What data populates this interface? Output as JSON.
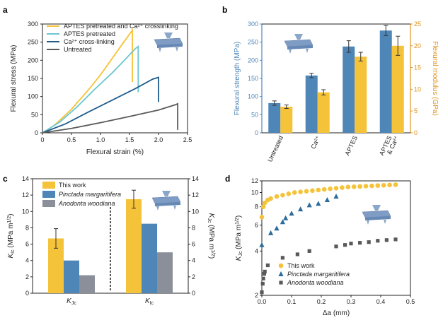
{
  "colors": {
    "yellow": "#f5c33a",
    "cyan": "#6cc6cf",
    "darkblue": "#1f5c8c",
    "gray": "#5a5a5a",
    "blue_bar": "#4f86b8",
    "orange_axis": "#e0921c",
    "gray_bar": "#8a8f9a",
    "blue_marker": "#2b6c9c",
    "gray_marker": "#595959"
  },
  "panels": {
    "a": {
      "letter": "a"
    },
    "b": {
      "letter": "b"
    },
    "c": {
      "letter": "c"
    },
    "d": {
      "letter": "d"
    }
  },
  "chart_data": [
    {
      "panel": "a",
      "type": "line",
      "xlabel": "Flexural strain (%)",
      "ylabel": "Flexural stress (MPa)",
      "xlim": [
        0,
        2.5
      ],
      "ylim": [
        0,
        300
      ],
      "xticks": [
        "0",
        "0.5",
        "1.0",
        "1.5",
        "2.0",
        "2.5"
      ],
      "yticks": [
        "0",
        "50",
        "100",
        "150",
        "200",
        "250",
        "300"
      ],
      "legend_position": "top-left",
      "series": [
        {
          "name": "APTES pretreated and Ca²⁺ crosslinking",
          "color_key": "yellow",
          "x": [
            0,
            0.2,
            0.5,
            0.8,
            1.0,
            1.2,
            1.4,
            1.55,
            1.55
          ],
          "y": [
            0,
            20,
            65,
            120,
            160,
            205,
            250,
            283,
            140
          ]
        },
        {
          "name": "APTES pretreated",
          "color_key": "cyan",
          "x": [
            0,
            0.3,
            0.6,
            0.9,
            1.2,
            1.4,
            1.6,
            1.65,
            1.65
          ],
          "y": [
            0,
            30,
            72,
            120,
            165,
            198,
            232,
            238,
            112
          ]
        },
        {
          "name": "Ca²⁺ cross-linking",
          "color_key": "darkblue",
          "x": [
            0,
            0.4,
            0.8,
            1.2,
            1.6,
            1.9,
            2.0,
            2.0
          ],
          "y": [
            0,
            25,
            58,
            90,
            122,
            148,
            153,
            85
          ]
        },
        {
          "name": "Untreated",
          "color_key": "gray",
          "x": [
            0,
            0.5,
            1.0,
            1.5,
            2.0,
            2.3,
            2.33,
            2.33
          ],
          "y": [
            0,
            12,
            28,
            45,
            63,
            78,
            80,
            8
          ]
        }
      ]
    },
    {
      "panel": "b",
      "type": "bar",
      "categories": [
        "Untreated",
        "Ca²⁺",
        "APTES",
        "APTES & Ca²⁺"
      ],
      "ylabel_left": "Flexural strength (MPa)",
      "ylabel_right": "Flexural modulus (GPa)",
      "ylim_left": [
        0,
        300
      ],
      "ylim_right": [
        0,
        25
      ],
      "yticks_left": [
        "0",
        "50",
        "100",
        "150",
        "200",
        "250",
        "300"
      ],
      "yticks_right": [
        "0",
        "5",
        "10",
        "15",
        "20",
        "25"
      ],
      "series": [
        {
          "axis": "left",
          "color_key": "blue_bar",
          "values": [
            82,
            158,
            238,
            282
          ],
          "errors": [
            6,
            6,
            16,
            14
          ]
        },
        {
          "axis": "right",
          "color_key": "yellow",
          "values": [
            6.0,
            9.3,
            17.5,
            20.0
          ],
          "errors": [
            0.4,
            0.6,
            1.0,
            2.2
          ]
        }
      ]
    },
    {
      "panel": "c",
      "type": "bar",
      "groups": [
        {
          "label_main": "K",
          "label_sub": "Jc"
        },
        {
          "label_main": "K",
          "label_sub": "Ic"
        }
      ],
      "ylabel_left": "K",
      "ylabel_left_sub": "Ic",
      "ylabel_left_unit": " (MPa m",
      "ylabel_left_exp": "1/2",
      "ylabel_right": "K",
      "ylabel_right_sub": "Jc",
      "ylabel_right_unit": " (MPa m",
      "ylabel_right_exp": "1/2",
      "ylim": [
        0,
        14
      ],
      "yticks": [
        "0",
        "2",
        "4",
        "6",
        "8",
        "10",
        "12",
        "14"
      ],
      "legend_position": "top-left",
      "series": [
        {
          "name": "This work",
          "italic": false,
          "color_key": "yellow",
          "values": [
            6.7,
            11.5
          ],
          "errors": [
            1.2,
            1.1
          ]
        },
        {
          "name": "Pinctada margaritifera",
          "italic": true,
          "color_key": "blue_bar",
          "values": [
            4.0,
            8.5
          ],
          "errors": [
            0,
            0
          ]
        },
        {
          "name": "Anodonta woodiana",
          "italic": true,
          "color_key": "gray_bar",
          "values": [
            2.2,
            5.0
          ],
          "errors": [
            0,
            0
          ]
        }
      ]
    },
    {
      "panel": "d",
      "type": "scatter",
      "xlabel": "Δa (mm)",
      "ylabel": "K",
      "ylabel_sub": "Jc",
      "ylabel_unit": " (MPa m",
      "ylabel_exp": "1/2",
      "y_scale": "log",
      "xlim": [
        0,
        0.5
      ],
      "ylim": [
        2,
        12
      ],
      "xticks": [
        "0.0",
        "0.1",
        "0.2",
        "0.3",
        "0.4",
        "0.5"
      ],
      "yticks": [
        "2",
        "4",
        "6",
        "8",
        "10",
        "12"
      ],
      "legend_position": "bottom-left",
      "series": [
        {
          "name": "This work",
          "italic": false,
          "color_key": "yellow",
          "marker": "circle",
          "x": [
            0.0,
            0.005,
            0.01,
            0.02,
            0.03,
            0.05,
            0.07,
            0.09,
            0.11,
            0.13,
            0.15,
            0.17,
            0.19,
            0.21,
            0.23,
            0.25,
            0.27,
            0.29,
            0.31,
            0.33,
            0.35,
            0.37,
            0.39,
            0.41,
            0.43,
            0.45
          ],
          "y": [
            6.8,
            8.0,
            8.5,
            8.9,
            9.1,
            9.4,
            9.6,
            9.8,
            10.0,
            10.1,
            10.2,
            10.3,
            10.4,
            10.5,
            10.6,
            10.7,
            10.8,
            10.9,
            10.95,
            11.0,
            11.05,
            11.1,
            11.15,
            11.2,
            11.25,
            11.3
          ]
        },
        {
          "name": "Pinctada margaritifera",
          "italic": true,
          "color_key": "blue_marker",
          "marker": "triangle",
          "x": [
            0.0,
            0.03,
            0.05,
            0.07,
            0.08,
            0.1,
            0.13,
            0.16,
            0.19,
            0.22,
            0.25
          ],
          "y": [
            4.4,
            5.3,
            5.7,
            6.3,
            6.7,
            7.2,
            7.7,
            8.2,
            8.4,
            8.9,
            9.4
          ]
        },
        {
          "name": "Anodonta woodiana",
          "italic": true,
          "color_key": "gray_marker",
          "marker": "square",
          "x": [
            0.0,
            0.003,
            0.005,
            0.008,
            0.01,
            0.02,
            0.07,
            0.12,
            0.16,
            0.25,
            0.28,
            0.3,
            0.33,
            0.36,
            0.39,
            0.42,
            0.45
          ],
          "y": [
            2.1,
            2.4,
            2.6,
            2.8,
            2.9,
            3.2,
            3.6,
            3.8,
            4.0,
            4.3,
            4.4,
            4.5,
            4.55,
            4.6,
            4.7,
            4.75,
            4.8
          ]
        }
      ]
    }
  ]
}
